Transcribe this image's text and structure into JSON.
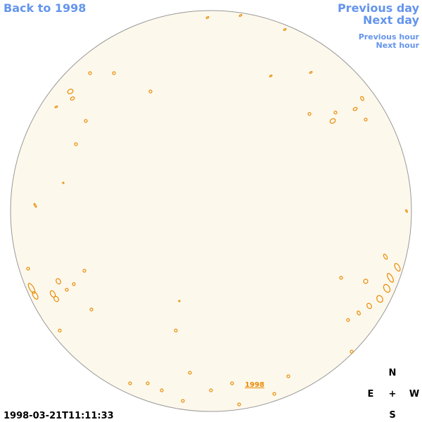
{
  "nav": {
    "back": "Back to 1998",
    "previous_day": "Previous day",
    "next_day": "Next day",
    "previous_hour": "Previous hour",
    "next_hour": "Next hour"
  },
  "disk_label": "1998",
  "timestamp": "1998-03-21T11:11:33",
  "compass": {
    "north": "N",
    "east": "E",
    "center": "+",
    "west": "W",
    "south": "S"
  }
}
